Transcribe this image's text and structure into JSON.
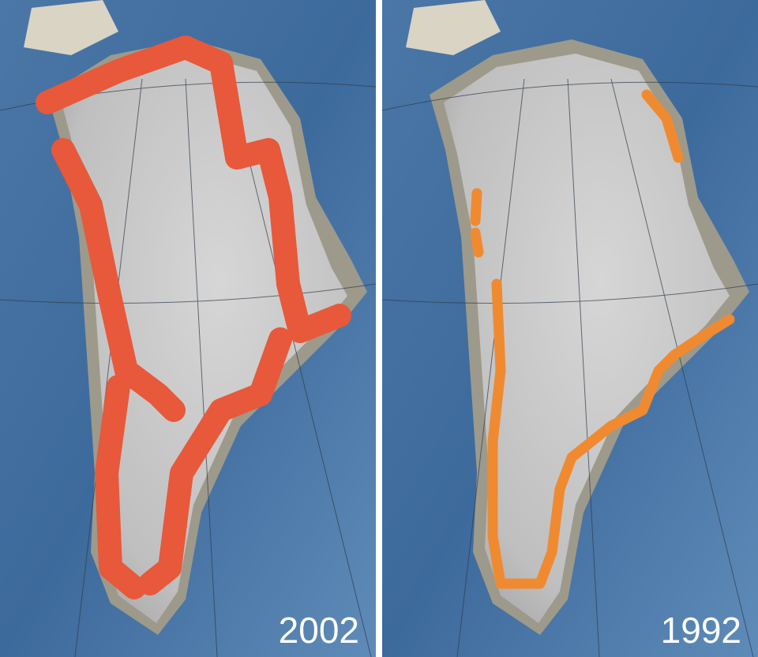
{
  "panels": [
    {
      "label": "2002"
    },
    {
      "label": "1992"
    }
  ]
}
